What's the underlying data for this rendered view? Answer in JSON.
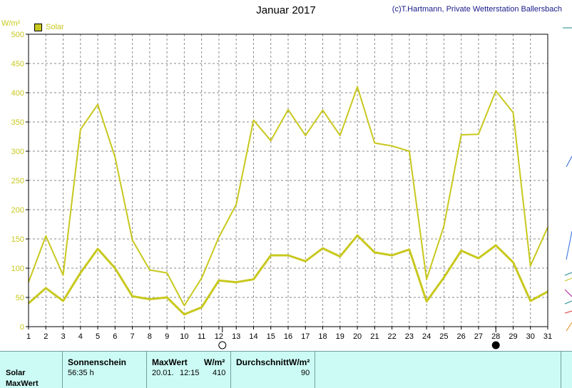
{
  "title": "Januar 2017",
  "credit": "(c)T.Hartmann, Private Wetterstation Ballersbach",
  "y_unit": "W/m²",
  "legend": {
    "label": "Solar",
    "color": "#c8c81e"
  },
  "chart_data": {
    "type": "line",
    "title": "Januar 2017",
    "ylabel": "W/m²",
    "ylim": [
      0,
      500
    ],
    "yticks": [
      0,
      50,
      100,
      150,
      200,
      250,
      300,
      350,
      400,
      450,
      500
    ],
    "grid": true,
    "legend_position": "top-left",
    "x": [
      1,
      2,
      3,
      4,
      5,
      6,
      7,
      8,
      9,
      10,
      11,
      12,
      13,
      14,
      15,
      16,
      17,
      18,
      19,
      20,
      21,
      22,
      23,
      24,
      25,
      26,
      27,
      28,
      29,
      30,
      31
    ],
    "series": [
      {
        "name": "Solar",
        "color": "#c8c81e",
        "values": [
          76,
          155,
          88,
          337,
          380,
          290,
          148,
          97,
          92,
          36,
          83,
          153,
          209,
          353,
          318,
          371,
          327,
          370,
          327,
          410,
          314,
          309,
          300,
          81,
          172,
          328,
          329,
          403,
          366,
          104,
          170
        ]
      },
      {
        "color": "#c8c81e",
        "values": [
          40,
          66,
          44,
          92,
          133,
          100,
          52,
          47,
          50,
          21,
          33,
          79,
          76,
          81,
          122,
          122,
          112,
          134,
          120,
          156,
          127,
          122,
          132,
          43,
          84,
          130,
          117,
          139,
          110,
          44,
          60
        ]
      }
    ],
    "moon_phases": [
      {
        "day": 12.2,
        "phase": "full"
      },
      {
        "day": 28,
        "phase": "new"
      }
    ]
  },
  "table": {
    "row_label_1": "Solar",
    "row_label_2": "MaxWert",
    "col_sonnenschein": "Sonnenschein",
    "val_sonnenschein": "56:35 h",
    "col_maxwert": "MaxWert",
    "col_maxwert_unit": "W/m²",
    "val_maxwert_date": "20.01.",
    "val_maxwert_time": "12:15",
    "val_maxwert_value": "410",
    "col_durchschnitt": "DurchschnittW/m²",
    "val_durchschnitt": "90"
  }
}
